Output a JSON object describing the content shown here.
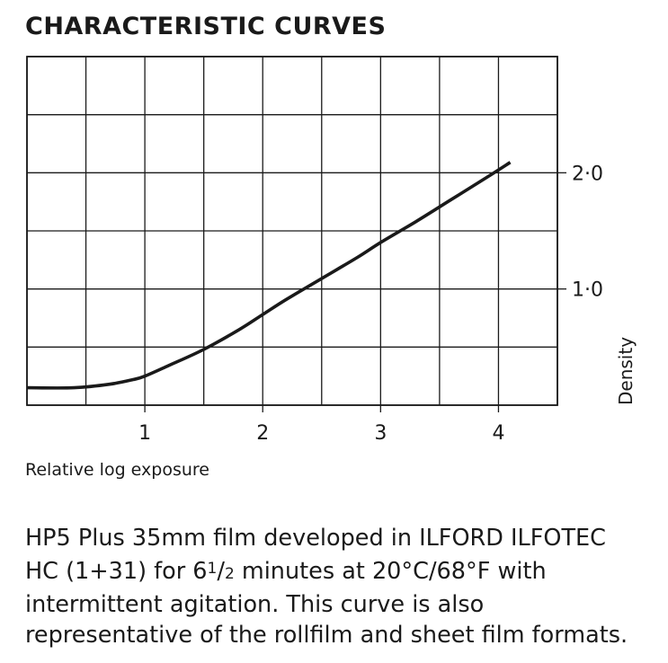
{
  "chart_data": {
    "type": "line",
    "title": "CHARACTERISTIC CURVES",
    "xlabel": "Relative log exposure",
    "ylabel": "Density",
    "xlim": [
      -1,
      3.5
    ],
    "ylim": [
      -1,
      2.0
    ],
    "x_ticks": [
      {
        "value": 0,
        "label": "1"
      },
      {
        "value": 1,
        "label": "2"
      },
      {
        "value": 2,
        "label": "3"
      },
      {
        "value": 3,
        "label": "4"
      }
    ],
    "y_ticks": [
      {
        "value": 1.0,
        "label": "2·0"
      },
      {
        "value": 0.0,
        "label": "1·0"
      }
    ],
    "grid": true,
    "series": [
      {
        "x": [
          -1.0,
          -0.6,
          -0.3,
          -0.1,
          0.0,
          0.2,
          0.5,
          0.8,
          1.0,
          1.2,
          1.5,
          1.8,
          2.0,
          2.3,
          2.6,
          2.9,
          3.1
        ],
        "y": [
          -0.85,
          -0.85,
          -0.82,
          -0.78,
          -0.75,
          -0.66,
          -0.52,
          -0.35,
          -0.22,
          -0.09,
          0.09,
          0.27,
          0.4,
          0.58,
          0.77,
          0.96,
          1.09
        ]
      }
    ]
  },
  "caption": {
    "line1": "HP5 Plus 35mm film developed in ILFORD ILFOTEC",
    "line2_pre": "HC (1+31) for 6",
    "line2_num": "1",
    "line2_slash": "/",
    "line2_den": "2",
    "line2_post": " minutes at 20°C/68°F with",
    "line3": "intermittent agitation. This curve is also",
    "line4": "representative of the rollfilm and sheet film formats."
  }
}
